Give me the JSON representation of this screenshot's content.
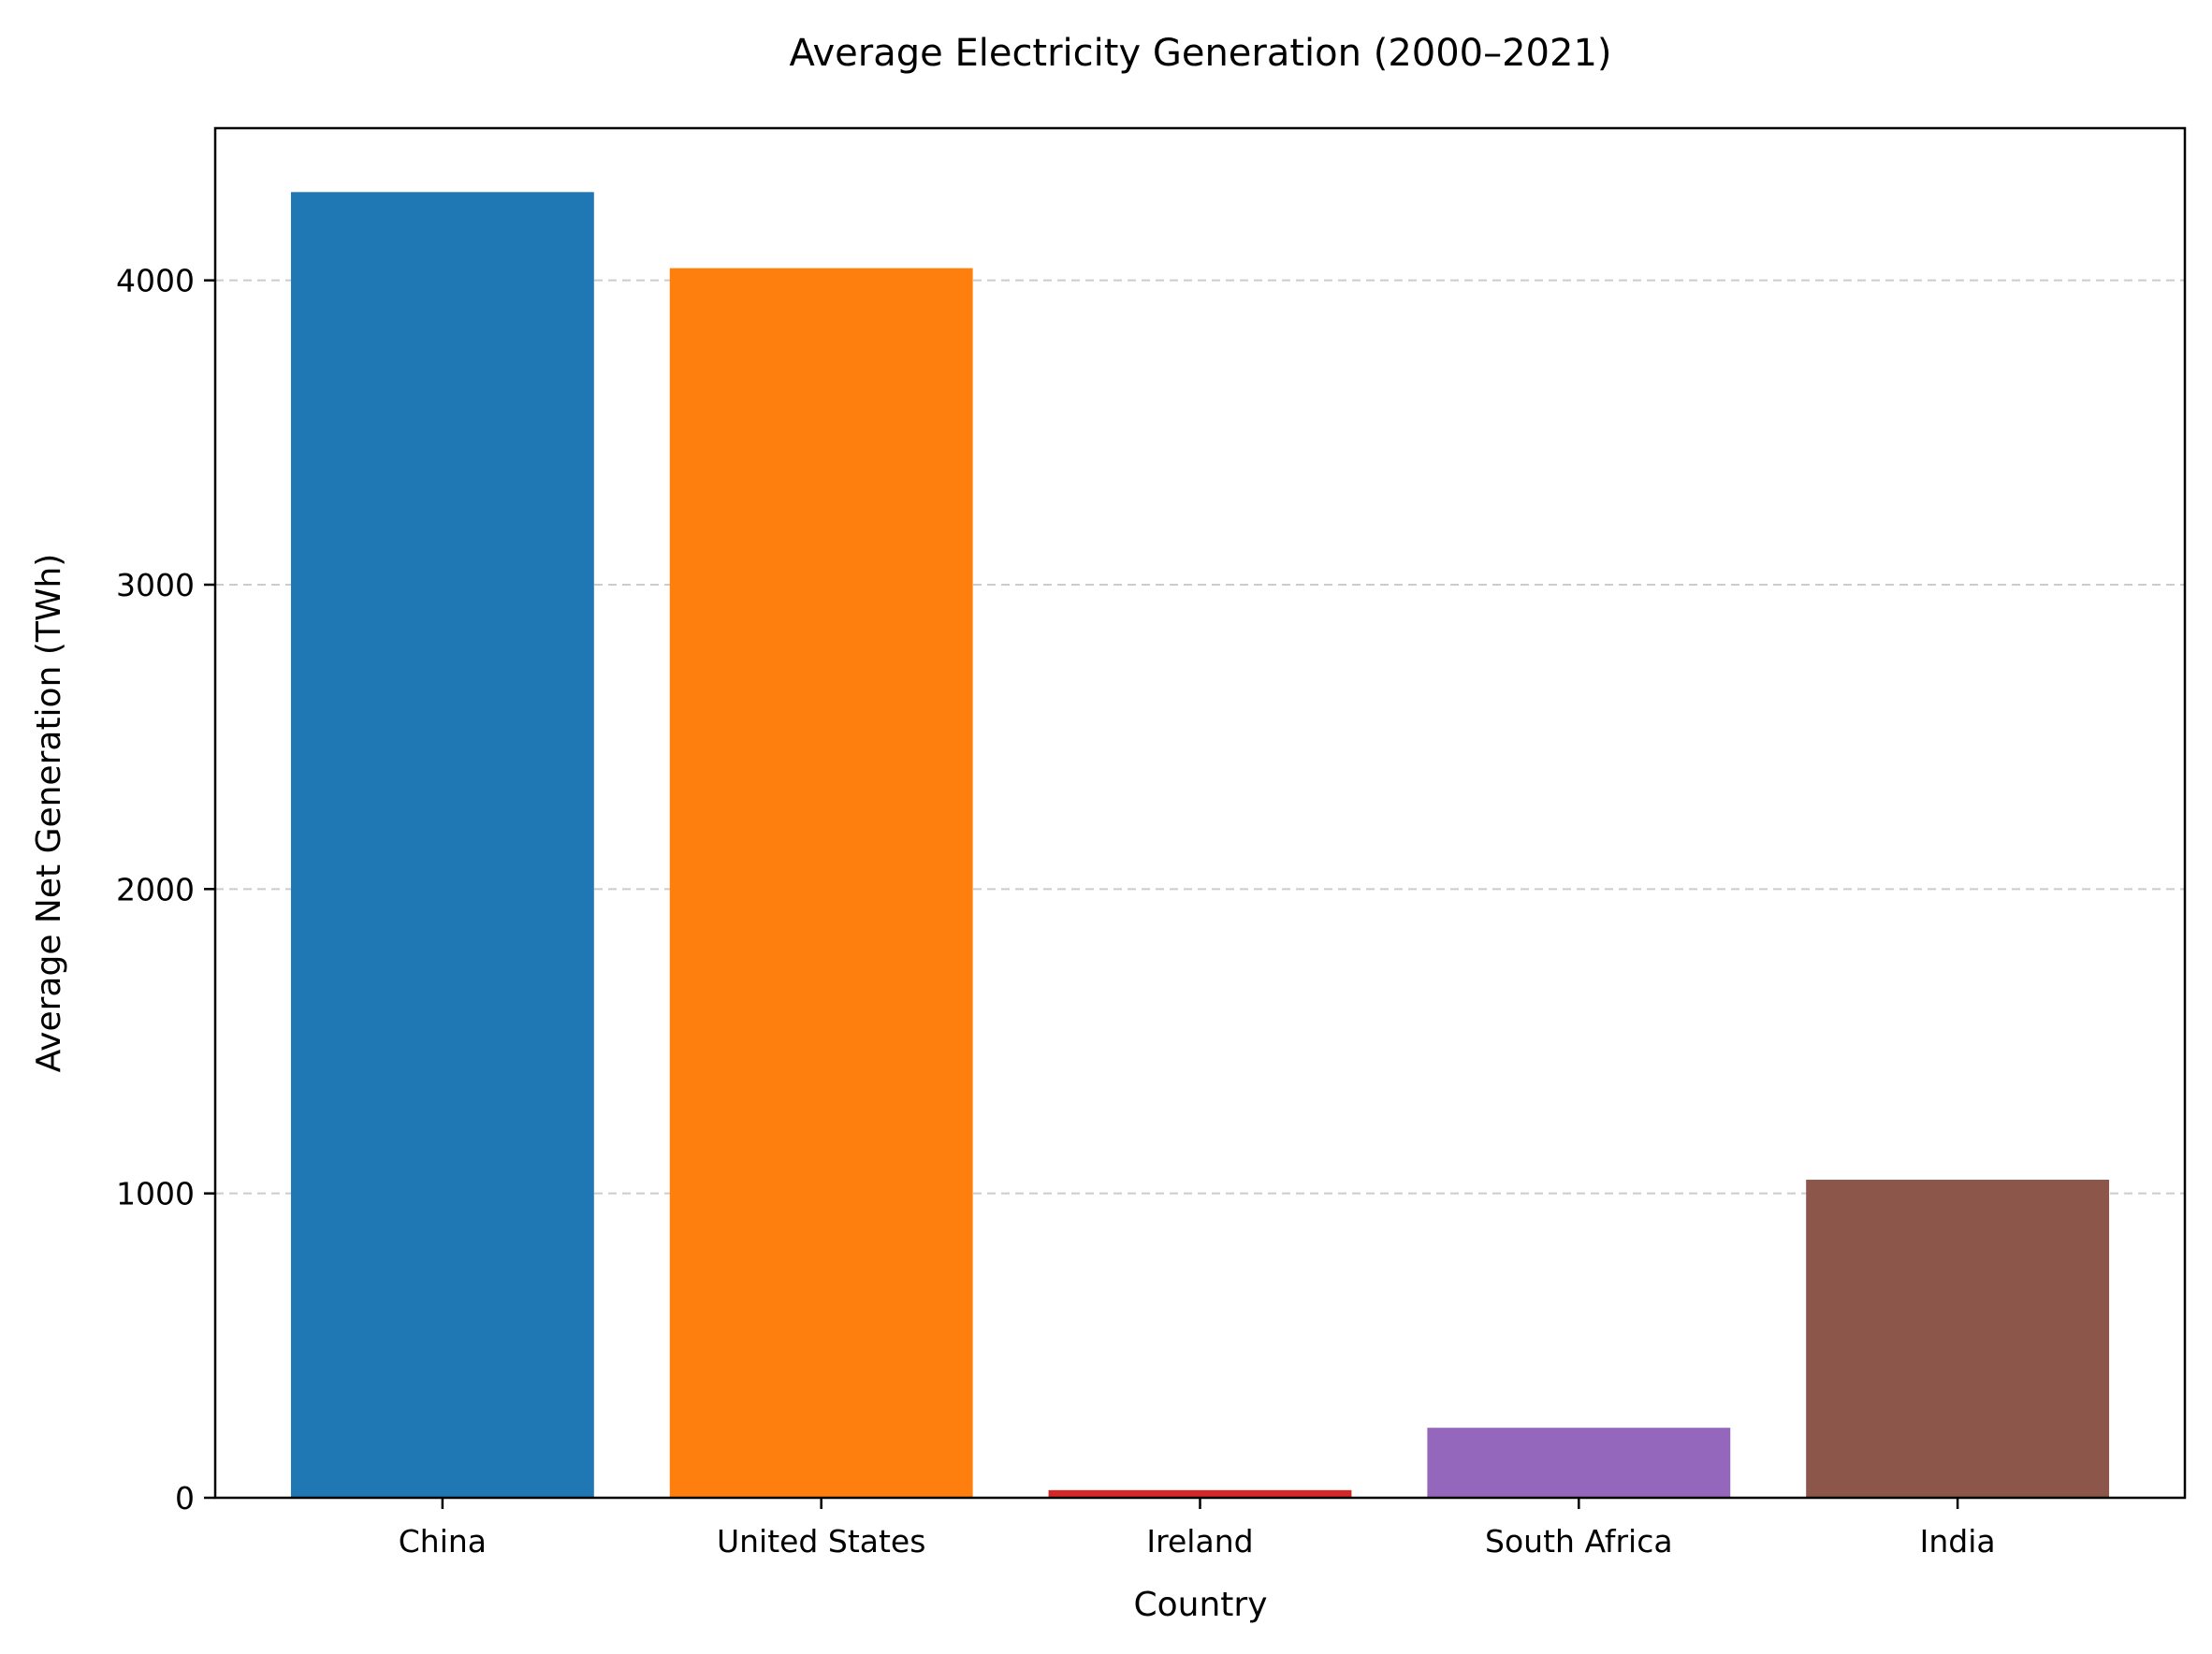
{
  "chart_data": {
    "type": "bar",
    "title": "Average Electricity Generation (2000–2021)",
    "xlabel": "Country",
    "ylabel": "Average Net Generation (TWh)",
    "categories": [
      "China",
      "United States",
      "Ireland",
      "South Africa",
      "India"
    ],
    "values": [
      4290,
      4040,
      25,
      230,
      1045
    ],
    "colors": [
      "#1f77b4",
      "#ff7f0e",
      "#d62728",
      "#9467bd",
      "#8c564b"
    ],
    "ylim": [
      0,
      4500
    ],
    "yticks": [
      0,
      1000,
      2000,
      3000,
      4000
    ],
    "grid": "horizontal dashed"
  }
}
